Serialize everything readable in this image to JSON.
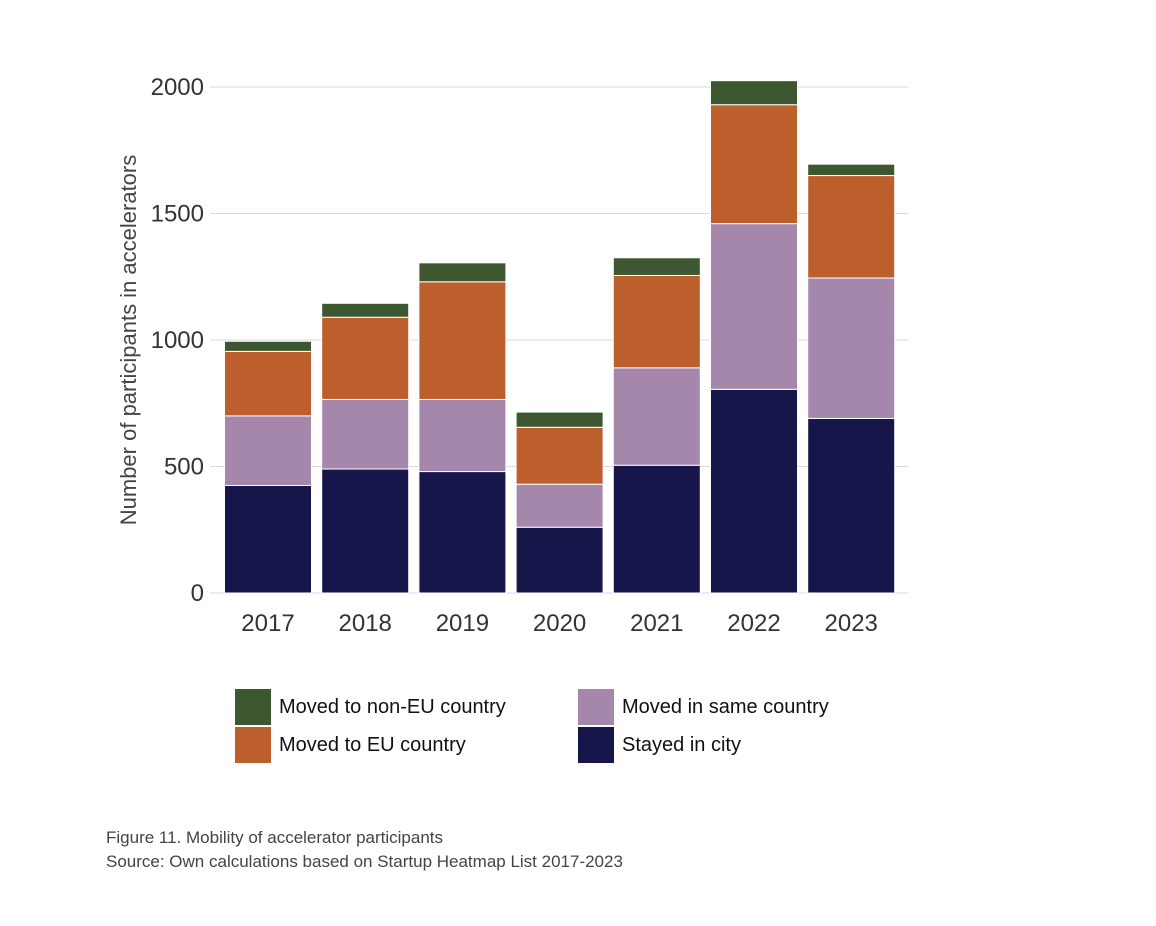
{
  "chart_data": {
    "type": "bar",
    "stacked": true,
    "categories": [
      "2017",
      "2018",
      "2019",
      "2020",
      "2021",
      "2022",
      "2023"
    ],
    "series": [
      {
        "name": "Stayed in city",
        "color": "#16164a",
        "values": [
          425,
          490,
          480,
          260,
          505,
          805,
          690
        ]
      },
      {
        "name": "Moved in same country",
        "color": "#a487ab",
        "values": [
          275,
          275,
          285,
          170,
          385,
          655,
          555
        ]
      },
      {
        "name": "Moved to EU country",
        "color": "#bd5e2d",
        "values": [
          255,
          325,
          465,
          225,
          365,
          470,
          405
        ]
      },
      {
        "name": "Moved to non-EU country",
        "color": "#3d5730",
        "values": [
          40,
          55,
          75,
          60,
          70,
          95,
          45
        ]
      }
    ],
    "ylabel": "Number of participants in accelerators",
    "xlabel": "",
    "ylim": [
      0,
      2000
    ],
    "yticks": [
      0,
      500,
      1000,
      1500,
      2000
    ],
    "grid": true,
    "legend_placement": "bottom"
  },
  "legend": [
    {
      "label": "Moved to non-EU country",
      "color": "#3d5730"
    },
    {
      "label": "Moved in same country",
      "color": "#a487ab"
    },
    {
      "label": "Moved to EU country",
      "color": "#bd5e2d"
    },
    {
      "label": "Stayed in city",
      "color": "#16164a"
    }
  ],
  "caption": {
    "figure": "Figure 11. Mobility of accelerator participants",
    "source": "Source: Own calculations based on Startup Heatmap List 2017-2023"
  }
}
